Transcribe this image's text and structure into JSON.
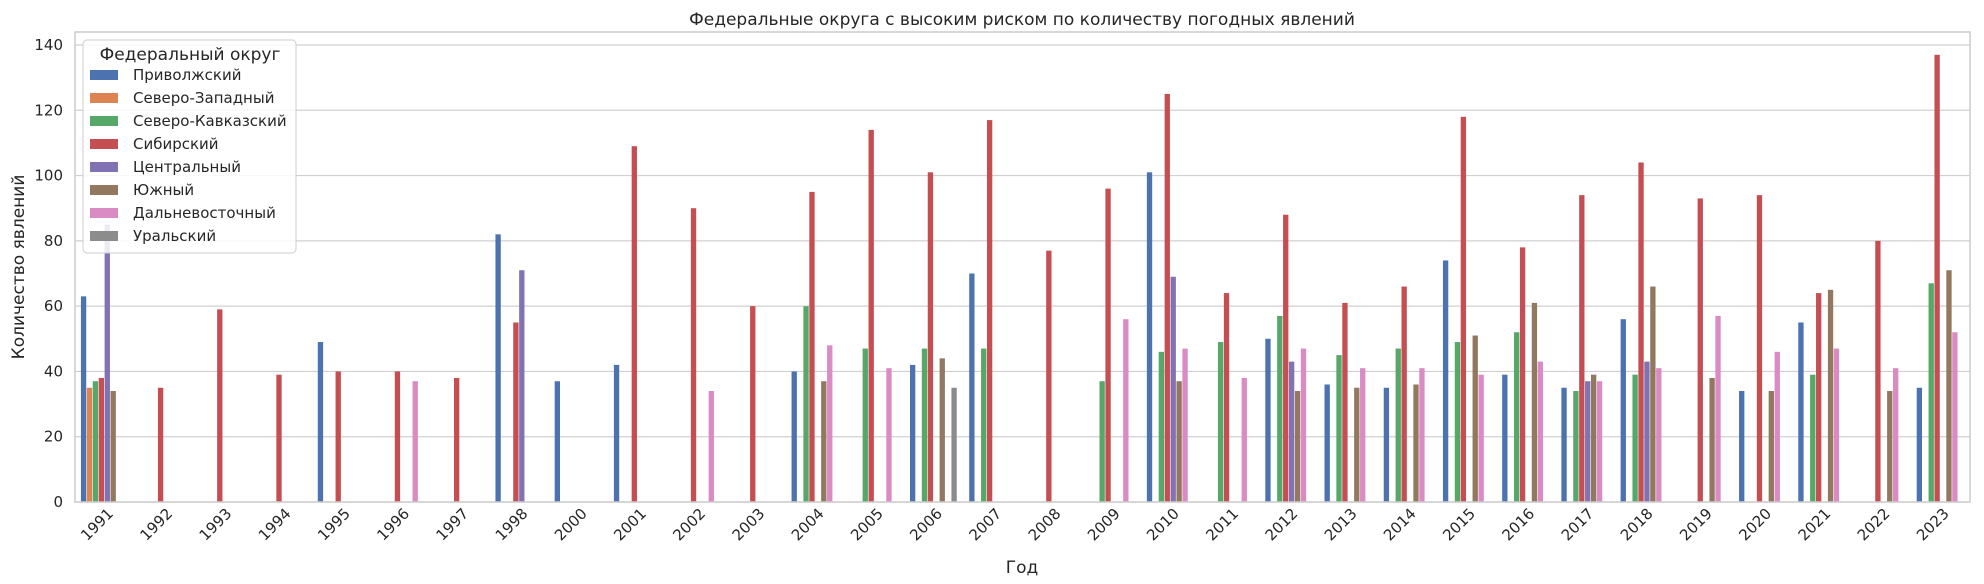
{
  "chart_data": {
    "type": "bar",
    "title": "Федеральные округа с высоким риском по количеству погодных явлений",
    "xlabel": "Год",
    "ylabel": "Количество явлений",
    "ylim": [
      0,
      140
    ],
    "yticks": [
      0,
      20,
      40,
      60,
      80,
      100,
      120,
      140
    ],
    "grid": "y",
    "legend": {
      "title": "Федеральный округ",
      "placement": "top-left"
    },
    "categories": [
      "1991",
      "1992",
      "1993",
      "1994",
      "1995",
      "1996",
      "1997",
      "1998",
      "2000",
      "2001",
      "2002",
      "2003",
      "2004",
      "2005",
      "2006",
      "2007",
      "2008",
      "2009",
      "2010",
      "2011",
      "2012",
      "2013",
      "2014",
      "2015",
      "2016",
      "2017",
      "2018",
      "2019",
      "2020",
      "2021",
      "2022",
      "2023"
    ],
    "series": [
      {
        "name": "Приволжский",
        "color": "#4c72b0",
        "values": [
          63,
          null,
          null,
          null,
          49,
          null,
          null,
          82,
          37,
          42,
          null,
          null,
          40,
          null,
          42,
          70,
          null,
          null,
          101,
          null,
          50,
          36,
          35,
          74,
          39,
          35,
          56,
          null,
          34,
          55,
          null,
          35
        ]
      },
      {
        "name": "Северо-Западный",
        "color": "#dd8452",
        "values": [
          35,
          null,
          null,
          null,
          null,
          null,
          null,
          null,
          null,
          null,
          null,
          null,
          null,
          null,
          null,
          null,
          null,
          null,
          null,
          null,
          null,
          null,
          null,
          null,
          null,
          null,
          null,
          null,
          null,
          null,
          null,
          null
        ]
      },
      {
        "name": "Северо-Кавказский",
        "color": "#55a868",
        "values": [
          37,
          null,
          null,
          null,
          null,
          null,
          null,
          null,
          null,
          null,
          null,
          null,
          60,
          47,
          47,
          47,
          null,
          37,
          46,
          49,
          57,
          45,
          47,
          49,
          52,
          34,
          39,
          null,
          null,
          39,
          null,
          67
        ]
      },
      {
        "name": "Сибирский",
        "color": "#c44e52",
        "values": [
          38,
          35,
          59,
          39,
          40,
          40,
          38,
          55,
          null,
          109,
          90,
          60,
          95,
          114,
          101,
          117,
          77,
          96,
          125,
          64,
          88,
          61,
          66,
          118,
          78,
          94,
          104,
          93,
          94,
          64,
          80,
          137
        ]
      },
      {
        "name": "Центральный",
        "color": "#8172b3",
        "values": [
          85,
          null,
          null,
          null,
          null,
          null,
          null,
          71,
          null,
          null,
          null,
          null,
          null,
          null,
          null,
          null,
          null,
          null,
          69,
          null,
          43,
          null,
          null,
          null,
          null,
          37,
          43,
          null,
          null,
          null,
          null,
          null
        ]
      },
      {
        "name": "Южный",
        "color": "#937860",
        "values": [
          34,
          null,
          null,
          null,
          null,
          null,
          null,
          null,
          null,
          null,
          null,
          null,
          37,
          null,
          44,
          null,
          null,
          null,
          37,
          null,
          34,
          35,
          36,
          51,
          61,
          39,
          66,
          38,
          34,
          65,
          34,
          71
        ]
      },
      {
        "name": "Дальневосточный",
        "color": "#da8bc3",
        "values": [
          null,
          null,
          null,
          null,
          null,
          37,
          null,
          null,
          null,
          null,
          34,
          null,
          48,
          41,
          null,
          null,
          null,
          56,
          47,
          38,
          47,
          41,
          41,
          39,
          43,
          37,
          41,
          57,
          46,
          47,
          41,
          52
        ]
      },
      {
        "name": "Уральский",
        "color": "#8c8c8c",
        "values": [
          null,
          null,
          null,
          null,
          null,
          null,
          null,
          null,
          null,
          null,
          null,
          null,
          null,
          null,
          35,
          null,
          null,
          null,
          null,
          null,
          null,
          null,
          null,
          null,
          null,
          null,
          null,
          null,
          null,
          null,
          null,
          null
        ]
      }
    ]
  }
}
